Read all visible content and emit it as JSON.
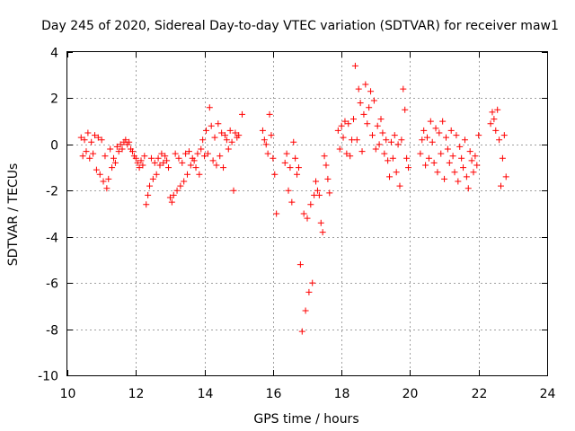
{
  "chart_data": {
    "type": "scatter",
    "title": "Day 245 of 2020, Sidereal Day-to-day VTEC variation (SDTVAR) for receiver maw1",
    "xlabel": "GPS time / hours",
    "ylabel": "SDTVAR / TECUs",
    "xlim": [
      10,
      24
    ],
    "ylim": [
      -10,
      4
    ],
    "x_ticks": [
      "10",
      "12",
      "14",
      "16",
      "18",
      "20",
      "22",
      "24"
    ],
    "y_ticks": [
      "-10",
      "-8",
      "-6",
      "-4",
      "-2",
      "0",
      "2",
      "4"
    ],
    "grid": true,
    "marker": "plus",
    "point_color": "#ff0000",
    "series": [
      {
        "name": "SDTVAR",
        "x": [
          10.4,
          10.45,
          10.5,
          10.55,
          10.6,
          10.65,
          10.7,
          10.75,
          10.8,
          10.85,
          10.9,
          10.95,
          11.0,
          11.05,
          11.1,
          11.15,
          11.2,
          11.25,
          11.3,
          11.35,
          11.4,
          11.45,
          11.5,
          11.55,
          11.6,
          11.65,
          11.7,
          11.75,
          11.8,
          11.85,
          11.9,
          11.95,
          12.0,
          12.05,
          12.1,
          12.15,
          12.2,
          12.25,
          12.3,
          12.35,
          12.4,
          12.45,
          12.5,
          12.55,
          12.6,
          12.65,
          12.7,
          12.75,
          12.8,
          12.85,
          12.9,
          12.95,
          13.0,
          13.05,
          13.1,
          13.15,
          13.2,
          13.25,
          13.3,
          13.35,
          13.4,
          13.45,
          13.5,
          13.55,
          13.6,
          13.65,
          13.7,
          13.75,
          13.8,
          13.85,
          13.9,
          13.95,
          14.0,
          14.05,
          14.1,
          14.15,
          14.2,
          14.25,
          14.3,
          14.35,
          14.4,
          14.45,
          14.5,
          14.55,
          14.6,
          14.65,
          14.7,
          14.75,
          14.8,
          14.85,
          14.9,
          14.95,
          15.0,
          15.1,
          15.7,
          15.75,
          15.8,
          15.85,
          15.9,
          15.95,
          16.0,
          16.05,
          16.1,
          16.35,
          16.4,
          16.45,
          16.5,
          16.55,
          16.6,
          16.65,
          16.7,
          16.75,
          16.8,
          16.85,
          16.9,
          16.95,
          17.0,
          17.05,
          17.1,
          17.15,
          17.2,
          17.25,
          17.3,
          17.35,
          17.4,
          17.45,
          17.5,
          17.55,
          17.6,
          17.65,
          17.9,
          17.95,
          18.0,
          18.05,
          18.1,
          18.15,
          18.2,
          18.25,
          18.3,
          18.35,
          18.4,
          18.45,
          18.5,
          18.55,
          18.6,
          18.65,
          18.7,
          18.75,
          18.8,
          18.85,
          18.9,
          18.95,
          19.0,
          19.05,
          19.1,
          19.15,
          19.2,
          19.25,
          19.3,
          19.35,
          19.4,
          19.45,
          19.5,
          19.55,
          19.6,
          19.65,
          19.7,
          19.75,
          19.8,
          19.85,
          19.9,
          19.95,
          20.3,
          20.35,
          20.4,
          20.45,
          20.5,
          20.55,
          20.6,
          20.65,
          20.7,
          20.75,
          20.8,
          20.85,
          20.9,
          20.95,
          21.0,
          21.05,
          21.1,
          21.15,
          21.2,
          21.25,
          21.3,
          21.35,
          21.4,
          21.45,
          21.5,
          21.55,
          21.6,
          21.65,
          21.7,
          21.75,
          21.8,
          21.85,
          21.9,
          21.95,
          22.0,
          22.35,
          22.4,
          22.45,
          22.5,
          22.55,
          22.6,
          22.65,
          22.7,
          22.75,
          22.8
        ],
        "y": [
          0.3,
          -0.5,
          0.2,
          -0.3,
          0.5,
          -0.6,
          0.1,
          -0.4,
          0.4,
          -1.1,
          0.3,
          -1.3,
          0.2,
          -1.6,
          -0.5,
          -1.9,
          -1.5,
          -0.2,
          -1.0,
          -0.6,
          -0.8,
          -0.1,
          -0.3,
          0.0,
          -0.2,
          0.1,
          0.2,
          0.0,
          0.1,
          -0.2,
          -0.3,
          -0.5,
          -0.6,
          -0.8,
          -1.0,
          -0.7,
          -0.9,
          -0.5,
          -2.6,
          -2.2,
          -1.8,
          -0.6,
          -1.5,
          -0.8,
          -1.3,
          -0.6,
          -0.9,
          -0.4,
          -0.8,
          -0.5,
          -0.7,
          -1.0,
          -2.3,
          -2.5,
          -2.2,
          -0.4,
          -2.0,
          -0.6,
          -1.8,
          -0.8,
          -1.6,
          -0.4,
          -1.3,
          -0.3,
          -0.9,
          -0.6,
          -0.7,
          -1.0,
          -0.4,
          -1.3,
          -0.2,
          0.2,
          -0.5,
          0.6,
          -0.4,
          1.6,
          0.8,
          -0.7,
          0.3,
          -0.9,
          0.9,
          -0.5,
          0.5,
          -1.0,
          0.4,
          0.2,
          -0.2,
          0.6,
          0.1,
          -2.0,
          0.5,
          0.3,
          0.4,
          1.3,
          0.6,
          0.2,
          0.0,
          -0.4,
          1.3,
          0.4,
          -0.6,
          -1.3,
          -3.0,
          -0.8,
          -0.4,
          -2.0,
          -1.0,
          -2.5,
          0.1,
          -0.6,
          -1.3,
          -1.0,
          -5.2,
          -8.1,
          -3.0,
          -7.2,
          -3.2,
          -6.4,
          -2.6,
          -6.0,
          -2.2,
          -1.6,
          -2.0,
          -2.2,
          -3.4,
          -3.8,
          -0.5,
          -0.9,
          -1.5,
          -2.1,
          0.6,
          -0.2,
          0.8,
          0.3,
          1.0,
          -0.4,
          0.9,
          -0.5,
          0.2,
          1.1,
          3.4,
          0.2,
          2.4,
          1.8,
          -0.3,
          1.3,
          2.6,
          0.9,
          1.6,
          2.3,
          0.4,
          1.9,
          -0.2,
          0.8,
          0.0,
          1.1,
          0.5,
          -0.4,
          0.2,
          -0.7,
          -1.4,
          0.1,
          -0.6,
          0.4,
          -1.2,
          0.0,
          -1.8,
          0.2,
          2.4,
          1.5,
          -0.6,
          -1.0,
          -0.4,
          0.2,
          0.6,
          -0.9,
          0.3,
          -0.6,
          1.0,
          0.1,
          -0.8,
          0.7,
          -1.2,
          0.5,
          -0.4,
          1.0,
          -1.5,
          0.3,
          -0.2,
          -0.8,
          0.6,
          -0.5,
          -1.2,
          0.4,
          -1.6,
          -0.1,
          -0.6,
          -1.0,
          0.2,
          -1.4,
          -1.9,
          -0.3,
          -0.7,
          -1.2,
          -0.5,
          -0.9,
          0.4,
          0.9,
          1.4,
          1.1,
          0.6,
          1.5,
          0.2,
          -1.8,
          -0.6,
          0.4,
          -1.4
        ]
      }
    ]
  }
}
